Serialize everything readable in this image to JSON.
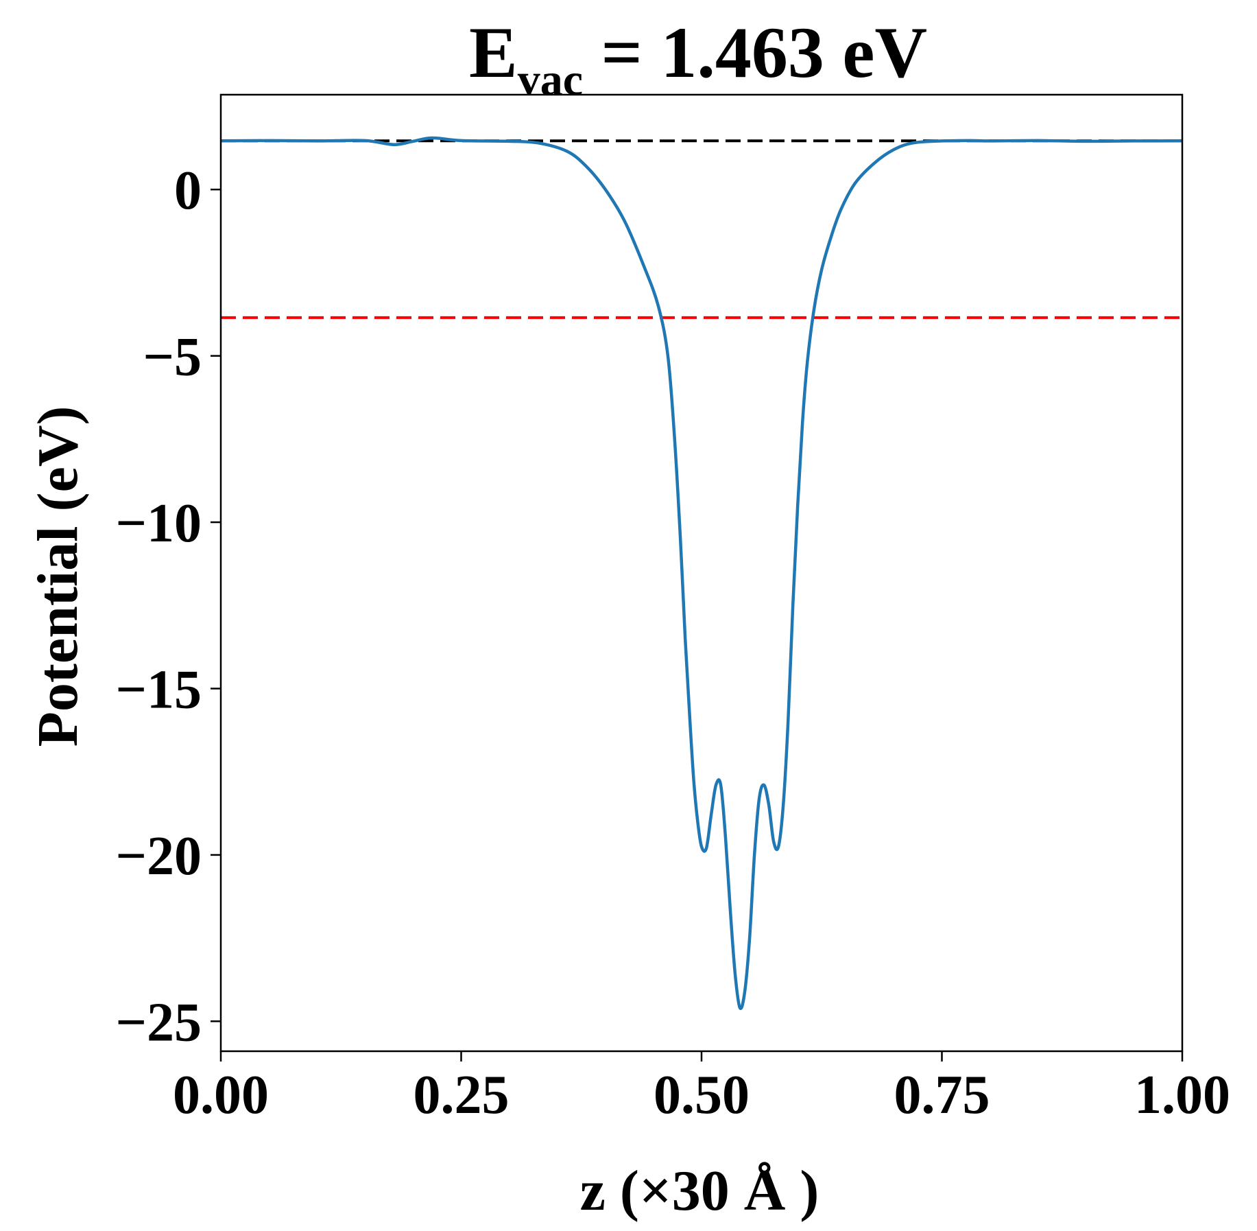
{
  "chart_data": {
    "type": "line",
    "title": {
      "main": "E",
      "subscript": "vac",
      "rest": " = 1.463 eV"
    },
    "xlabel": "z (×30 Å )",
    "ylabel": "Potential (eV)",
    "xlim": [
      0.0,
      1.0
    ],
    "ylim": [
      -25.9,
      2.85
    ],
    "xticks": [
      0.0,
      0.25,
      0.5,
      0.75,
      1.0
    ],
    "xtick_labels": [
      "0.00",
      "0.25",
      "0.50",
      "0.75",
      "1.00"
    ],
    "yticks": [
      0,
      -5,
      -10,
      -15,
      -20,
      -25
    ],
    "ytick_labels": [
      "0",
      "−5",
      "−10",
      "−15",
      "−20",
      "−25"
    ],
    "grid": false,
    "hlines": [
      {
        "y": 1.463,
        "color": "#000000",
        "style": "dashed"
      },
      {
        "y": -3.85,
        "color": "#ff0000",
        "style": "dashed"
      }
    ],
    "series": [
      {
        "color": "#1f77b4",
        "x": [
          0.0,
          0.05,
          0.1,
          0.15,
          0.18,
          0.2,
          0.22,
          0.25,
          0.3,
          0.33,
          0.36,
          0.38,
          0.4,
          0.42,
          0.44,
          0.455,
          0.465,
          0.472,
          0.478,
          0.483,
          0.488,
          0.492,
          0.496,
          0.5,
          0.505,
          0.51,
          0.515,
          0.52,
          0.525,
          0.53,
          0.535,
          0.54,
          0.545,
          0.55,
          0.555,
          0.56,
          0.565,
          0.57,
          0.575,
          0.58,
          0.585,
          0.59,
          0.595,
          0.6,
          0.605,
          0.61,
          0.617,
          0.625,
          0.635,
          0.645,
          0.66,
          0.68,
          0.7,
          0.72,
          0.75,
          0.78,
          0.8,
          0.85,
          0.9,
          0.95,
          1.0
        ],
        "y": [
          1.463,
          1.47,
          1.46,
          1.47,
          1.35,
          1.45,
          1.55,
          1.47,
          1.45,
          1.4,
          1.15,
          0.7,
          0.0,
          -0.95,
          -2.3,
          -3.5,
          -5.0,
          -7.5,
          -10.5,
          -13.5,
          -16.0,
          -17.8,
          -19.0,
          -19.75,
          -19.8,
          -18.8,
          -17.9,
          -17.9,
          -19.5,
          -21.7,
          -23.6,
          -24.6,
          -24.1,
          -22.5,
          -20.0,
          -18.3,
          -17.9,
          -18.5,
          -19.6,
          -19.75,
          -18.5,
          -16.0,
          -12.5,
          -9.5,
          -7.0,
          -5.2,
          -3.6,
          -2.4,
          -1.4,
          -0.6,
          0.2,
          0.8,
          1.2,
          1.4,
          1.46,
          1.47,
          1.46,
          1.47,
          1.45,
          1.46,
          1.463
        ]
      }
    ]
  }
}
